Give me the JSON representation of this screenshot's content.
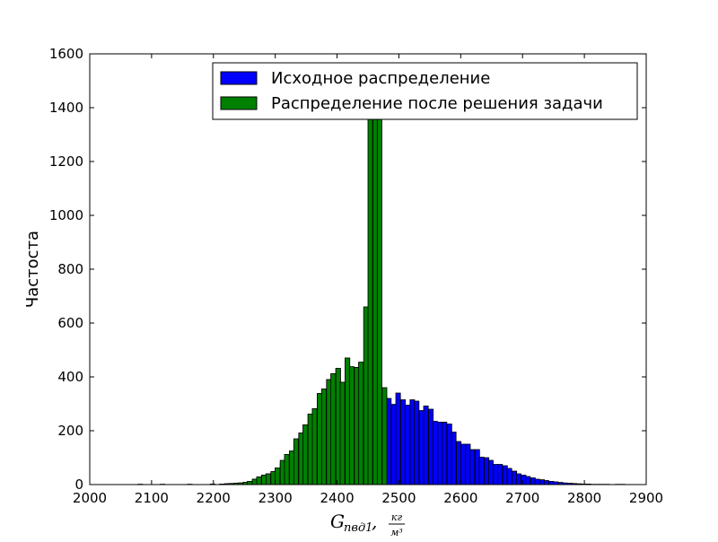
{
  "chart_data": {
    "type": "bar",
    "subtype": "histogram",
    "xlabel": {
      "symbol": "G",
      "subscript": "пвд1",
      "separator": ",",
      "unit_numerator": "кг",
      "unit_denominator": "м³"
    },
    "ylabel": "Частоста",
    "xlim": [
      2000,
      2900
    ],
    "ylim": [
      0,
      1600
    ],
    "xticks": [
      2000,
      2100,
      2200,
      2300,
      2400,
      2500,
      2600,
      2700,
      2800,
      2900
    ],
    "yticks": [
      0,
      200,
      400,
      600,
      800,
      1000,
      1200,
      1400,
      1600
    ],
    "grid": false,
    "legend_position": "upper-right",
    "bin_width": 7.5,
    "series": [
      {
        "name": "Исходное распределение",
        "color": "#0000ff",
        "bins": [
          [
            2078,
            1
          ],
          [
            2114,
            1
          ],
          [
            2158,
            1
          ],
          [
            2195,
            2
          ],
          [
            2210,
            2
          ],
          [
            2218,
            3
          ],
          [
            2225,
            4
          ],
          [
            2233,
            5
          ],
          [
            2240,
            6
          ],
          [
            2248,
            8
          ],
          [
            2255,
            12
          ],
          [
            2263,
            20
          ],
          [
            2270,
            28
          ],
          [
            2278,
            35
          ],
          [
            2285,
            40
          ],
          [
            2293,
            48
          ],
          [
            2300,
            62
          ],
          [
            2308,
            78
          ],
          [
            2315,
            100
          ],
          [
            2323,
            120
          ],
          [
            2330,
            150
          ],
          [
            2338,
            180
          ],
          [
            2345,
            222
          ],
          [
            2353,
            262
          ],
          [
            2360,
            282
          ],
          [
            2368,
            338
          ],
          [
            2375,
            355
          ],
          [
            2383,
            390
          ],
          [
            2390,
            410
          ],
          [
            2398,
            430
          ],
          [
            2405,
            380
          ],
          [
            2413,
            470
          ],
          [
            2420,
            435
          ],
          [
            2428,
            435
          ],
          [
            2435,
            452
          ],
          [
            2443,
            420
          ],
          [
            2450,
            390
          ],
          [
            2458,
            360
          ],
          [
            2465,
            340
          ],
          [
            2473,
            330
          ],
          [
            2480,
            320
          ],
          [
            2488,
            298
          ],
          [
            2495,
            340
          ],
          [
            2503,
            315
          ],
          [
            2510,
            295
          ],
          [
            2518,
            315
          ],
          [
            2525,
            310
          ],
          [
            2533,
            275
          ],
          [
            2540,
            292
          ],
          [
            2548,
            280
          ],
          [
            2555,
            235
          ],
          [
            2563,
            232
          ],
          [
            2570,
            232
          ],
          [
            2578,
            225
          ],
          [
            2585,
            195
          ],
          [
            2593,
            160
          ],
          [
            2600,
            150
          ],
          [
            2608,
            150
          ],
          [
            2615,
            130
          ],
          [
            2623,
            130
          ],
          [
            2630,
            102
          ],
          [
            2638,
            100
          ],
          [
            2645,
            90
          ],
          [
            2653,
            75
          ],
          [
            2660,
            75
          ],
          [
            2668,
            70
          ],
          [
            2675,
            60
          ],
          [
            2683,
            50
          ],
          [
            2690,
            40
          ],
          [
            2698,
            35
          ],
          [
            2705,
            30
          ],
          [
            2713,
            25
          ],
          [
            2720,
            20
          ],
          [
            2728,
            18
          ],
          [
            2735,
            15
          ],
          [
            2743,
            12
          ],
          [
            2750,
            10
          ],
          [
            2758,
            8
          ],
          [
            2765,
            6
          ],
          [
            2773,
            5
          ],
          [
            2780,
            4
          ],
          [
            2788,
            3
          ],
          [
            2795,
            2
          ],
          [
            2803,
            2
          ],
          [
            2810,
            1
          ],
          [
            2818,
            1
          ],
          [
            2825,
            1
          ],
          [
            2833,
            1
          ],
          [
            2850,
            1
          ],
          [
            2858,
            1
          ]
        ]
      },
      {
        "name": "Распределение после решения задачи",
        "color": "#008000",
        "bins": [
          [
            2078,
            1
          ],
          [
            2114,
            1
          ],
          [
            2158,
            1
          ],
          [
            2195,
            2
          ],
          [
            2210,
            2
          ],
          [
            2218,
            3
          ],
          [
            2225,
            4
          ],
          [
            2233,
            5
          ],
          [
            2240,
            6
          ],
          [
            2248,
            8
          ],
          [
            2255,
            12
          ],
          [
            2263,
            20
          ],
          [
            2270,
            28
          ],
          [
            2278,
            35
          ],
          [
            2285,
            40
          ],
          [
            2293,
            48
          ],
          [
            2300,
            62
          ],
          [
            2308,
            90
          ],
          [
            2315,
            112
          ],
          [
            2323,
            125
          ],
          [
            2330,
            170
          ],
          [
            2338,
            192
          ],
          [
            2345,
            222
          ],
          [
            2353,
            262
          ],
          [
            2360,
            282
          ],
          [
            2368,
            338
          ],
          [
            2375,
            355
          ],
          [
            2383,
            390
          ],
          [
            2390,
            412
          ],
          [
            2398,
            432
          ],
          [
            2405,
            380
          ],
          [
            2413,
            470
          ],
          [
            2420,
            438
          ],
          [
            2428,
            435
          ],
          [
            2435,
            455
          ],
          [
            2443,
            660
          ],
          [
            2450,
            1365
          ],
          [
            2458,
            1365
          ],
          [
            2465,
            1365
          ],
          [
            2473,
            360
          ]
        ]
      }
    ]
  }
}
